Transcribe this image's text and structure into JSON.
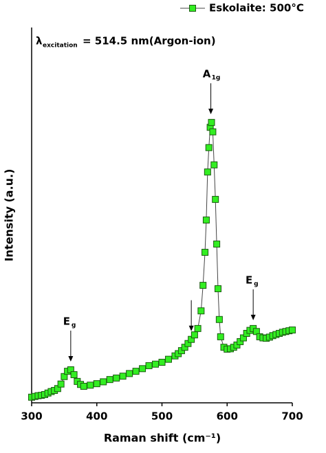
{
  "chart_data": {
    "type": "line",
    "legend_label": "Eskolaite: 500°C",
    "xlabel": "Raman shift (cm⁻¹)",
    "ylabel": "Intensity (a.u.)",
    "note": {
      "symbol": "λ",
      "sub": "excitation",
      "text": "= 514.5 nm(Argon-ion)"
    },
    "annotations": [
      {
        "text": "E",
        "sub": "g",
        "x": 360
      },
      {
        "x": 545
      },
      {
        "text": "A",
        "sub": "1g",
        "x": 575
      },
      {
        "text": "E",
        "sub": "g",
        "x": 640
      }
    ],
    "x": [
      300,
      305,
      310,
      315,
      320,
      325,
      330,
      335,
      340,
      345,
      350,
      355,
      360,
      365,
      370,
      375,
      380,
      390,
      400,
      410,
      420,
      430,
      440,
      450,
      460,
      470,
      480,
      490,
      500,
      510,
      520,
      525,
      530,
      535,
      540,
      545,
      550,
      555,
      560,
      563,
      566,
      568,
      570,
      572,
      574,
      576,
      578,
      580,
      582,
      584,
      586,
      588,
      590,
      595,
      600,
      605,
      610,
      615,
      620,
      625,
      630,
      635,
      640,
      645,
      650,
      655,
      660,
      665,
      670,
      675,
      680,
      685,
      690,
      695,
      700
    ],
    "series": [
      {
        "name": "Eskolaite: 500°C",
        "color": "#33ee22",
        "values": [
          1.5,
          1.7,
          1.9,
          2.0,
          2.2,
          2.6,
          3.0,
          3.3,
          3.8,
          5.0,
          7.0,
          8.4,
          8.8,
          7.5,
          5.7,
          4.9,
          4.4,
          4.7,
          5.1,
          5.6,
          6.2,
          6.6,
          7.1,
          7.8,
          8.4,
          9.1,
          9.9,
          10.3,
          10.8,
          11.6,
          12.5,
          13.1,
          13.9,
          14.8,
          15.8,
          16.9,
          18.1,
          19.8,
          24.5,
          31.3,
          40.1,
          48.7,
          61.5,
          68.0,
          73.4,
          74.7,
          72.2,
          63.4,
          54.2,
          42.3,
          30.4,
          22.2,
          17.6,
          14.8,
          14.3,
          14.4,
          14.8,
          15.4,
          16.3,
          17.3,
          18.5,
          19.3,
          19.8,
          19.0,
          17.6,
          17.3,
          17.2,
          17.5,
          17.9,
          18.2,
          18.5,
          18.8,
          19.0,
          19.2,
          19.4
        ]
      }
    ],
    "xlim": [
      300,
      700
    ],
    "xticks": [
      300,
      400,
      500,
      600,
      700
    ],
    "ylim": [
      0,
      100
    ]
  }
}
